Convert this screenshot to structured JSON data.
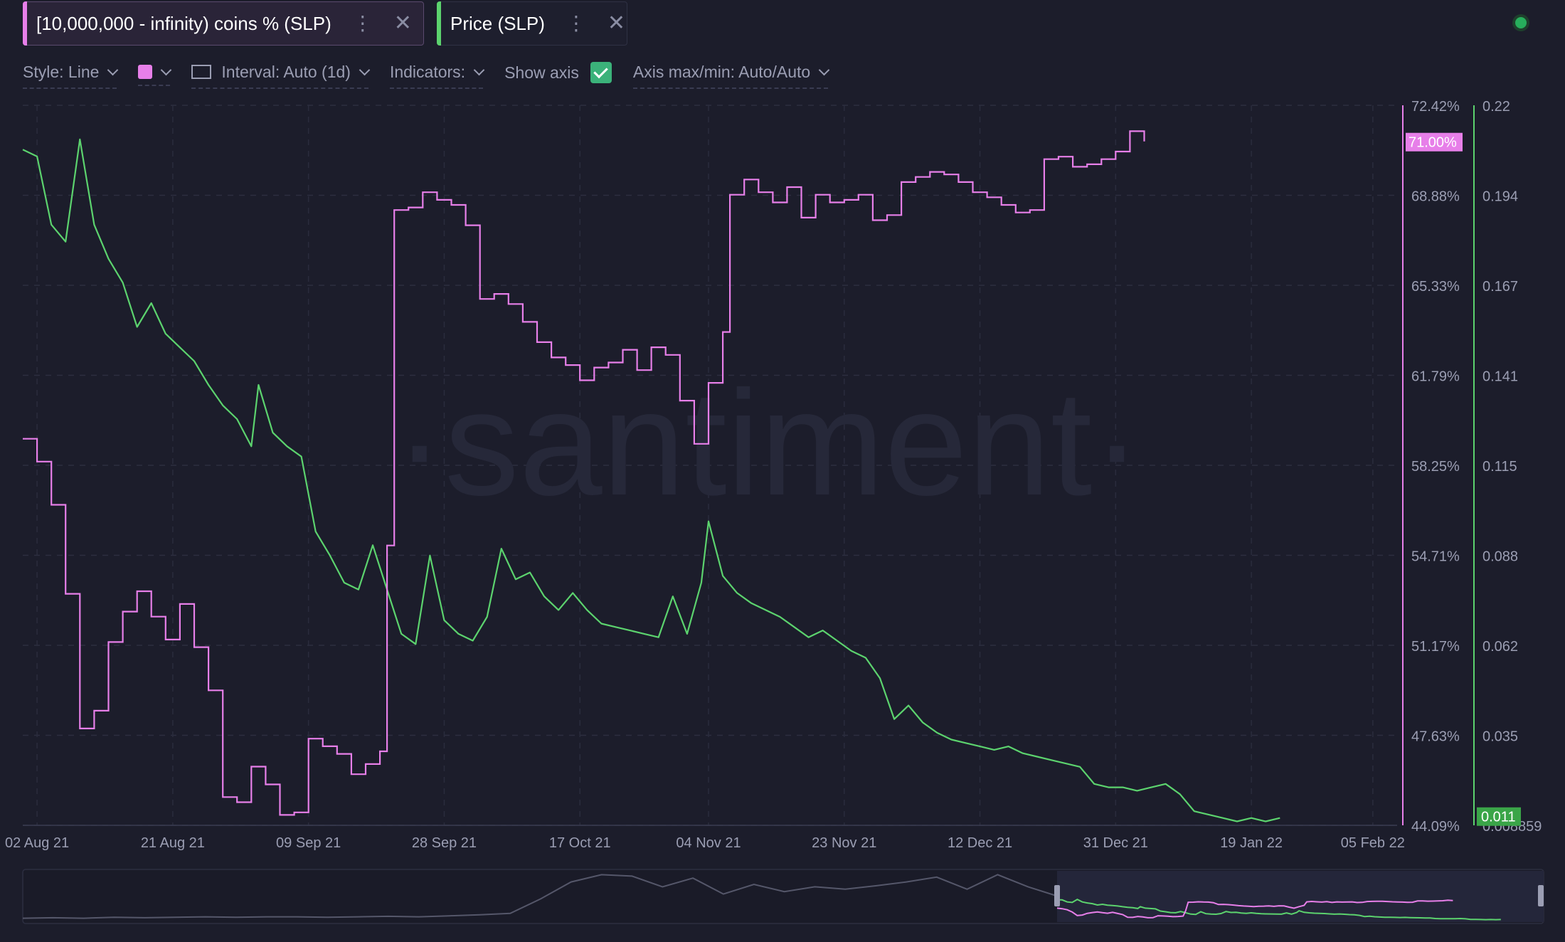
{
  "tabs": [
    {
      "label": "[10,000,000 - infinity) coins % (SLP)",
      "color": "#e77fe9"
    },
    {
      "label": "Price (SLP)",
      "color": "#5cd36e"
    }
  ],
  "toolbar": {
    "style": "Style: Line",
    "interval": "Interval: Auto (1d)",
    "indicators": "Indicators:",
    "show_axis": "Show axis",
    "show_axis_checked": true,
    "axis_maxmin": "Axis max/min: Auto/Auto"
  },
  "watermark": "·santiment·",
  "chart_data": {
    "type": "line",
    "x_ticks": [
      "02 Aug 21",
      "21 Aug 21",
      "09 Sep 21",
      "28 Sep 21",
      "17 Oct 21",
      "04 Nov 21",
      "23 Nov 21",
      "12 Dec 21",
      "31 Dec 21",
      "19 Jan 22",
      "05 Feb 22"
    ],
    "left_axis": {
      "ticks": [
        "72.42%",
        "68.88%",
        "65.33%",
        "61.79%",
        "58.25%",
        "54.71%",
        "51.17%",
        "47.63%",
        "44.09%"
      ],
      "range": [
        44.09,
        72.42
      ]
    },
    "right_axis": {
      "ticks": [
        "0.22",
        "0.194",
        "0.167",
        "0.141",
        "0.115",
        "0.088",
        "0.062",
        "0.035",
        "0.008859"
      ],
      "range": [
        0.008859,
        0.22
      ]
    },
    "last_value_labels": {
      "holders": "71.00%",
      "price": "0.011"
    },
    "series": [
      {
        "name": "[10,000,000 - infinity) coins % (SLP)",
        "color": "#e77fe9",
        "axis": "left",
        "points": [
          [
            "2021-07-31",
            59.3
          ],
          [
            "2021-08-02",
            58.4
          ],
          [
            "2021-08-04",
            56.7
          ],
          [
            "2021-08-06",
            53.2
          ],
          [
            "2021-08-08",
            47.9
          ],
          [
            "2021-08-10",
            48.6
          ],
          [
            "2021-08-12",
            51.3
          ],
          [
            "2021-08-14",
            52.5
          ],
          [
            "2021-08-16",
            53.3
          ],
          [
            "2021-08-18",
            52.3
          ],
          [
            "2021-08-20",
            51.4
          ],
          [
            "2021-08-22",
            52.8
          ],
          [
            "2021-08-24",
            51.1
          ],
          [
            "2021-08-26",
            49.4
          ],
          [
            "2021-08-28",
            45.2
          ],
          [
            "2021-08-30",
            45.0
          ],
          [
            "2021-09-01",
            46.4
          ],
          [
            "2021-09-03",
            45.7
          ],
          [
            "2021-09-05",
            44.5
          ],
          [
            "2021-09-07",
            44.6
          ],
          [
            "2021-09-09",
            47.5
          ],
          [
            "2021-09-11",
            47.2
          ],
          [
            "2021-09-13",
            46.9
          ],
          [
            "2021-09-15",
            46.1
          ],
          [
            "2021-09-17",
            46.5
          ],
          [
            "2021-09-19",
            47.0
          ],
          [
            "2021-09-20",
            55.1
          ],
          [
            "2021-09-21",
            68.3
          ],
          [
            "2021-09-23",
            68.4
          ],
          [
            "2021-09-25",
            69.0
          ],
          [
            "2021-09-27",
            68.7
          ],
          [
            "2021-09-29",
            68.5
          ],
          [
            "2021-10-01",
            67.7
          ],
          [
            "2021-10-03",
            64.8
          ],
          [
            "2021-10-05",
            65.0
          ],
          [
            "2021-10-07",
            64.6
          ],
          [
            "2021-10-09",
            63.9
          ],
          [
            "2021-10-11",
            63.1
          ],
          [
            "2021-10-13",
            62.5
          ],
          [
            "2021-10-15",
            62.2
          ],
          [
            "2021-10-17",
            61.6
          ],
          [
            "2021-10-19",
            62.1
          ],
          [
            "2021-10-21",
            62.3
          ],
          [
            "2021-10-23",
            62.8
          ],
          [
            "2021-10-25",
            62.0
          ],
          [
            "2021-10-27",
            62.9
          ],
          [
            "2021-10-29",
            62.6
          ],
          [
            "2021-10-31",
            60.8
          ],
          [
            "2021-11-02",
            59.1
          ],
          [
            "2021-11-04",
            61.5
          ],
          [
            "2021-11-06",
            63.5
          ],
          [
            "2021-11-07",
            68.9
          ],
          [
            "2021-11-09",
            69.5
          ],
          [
            "2021-11-11",
            69.0
          ],
          [
            "2021-11-13",
            68.6
          ],
          [
            "2021-11-15",
            69.2
          ],
          [
            "2021-11-17",
            68.0
          ],
          [
            "2021-11-19",
            68.9
          ],
          [
            "2021-11-21",
            68.6
          ],
          [
            "2021-11-23",
            68.7
          ],
          [
            "2021-11-25",
            68.9
          ],
          [
            "2021-11-27",
            67.9
          ],
          [
            "2021-11-29",
            68.1
          ],
          [
            "2021-12-01",
            69.4
          ],
          [
            "2021-12-03",
            69.6
          ],
          [
            "2021-12-05",
            69.8
          ],
          [
            "2021-12-07",
            69.7
          ],
          [
            "2021-12-09",
            69.4
          ],
          [
            "2021-12-11",
            69.0
          ],
          [
            "2021-12-13",
            68.8
          ],
          [
            "2021-12-15",
            68.5
          ],
          [
            "2021-12-17",
            68.2
          ],
          [
            "2021-12-19",
            68.3
          ],
          [
            "2021-12-21",
            70.3
          ],
          [
            "2021-12-23",
            70.4
          ],
          [
            "2021-12-25",
            70.0
          ],
          [
            "2021-12-27",
            70.1
          ],
          [
            "2021-12-29",
            70.3
          ],
          [
            "2021-12-31",
            70.6
          ],
          [
            "2022-01-02",
            71.4
          ],
          [
            "2022-01-04",
            71.0
          ]
        ]
      },
      {
        "name": "Price (SLP)",
        "color": "#5cd36e",
        "axis": "right",
        "points": [
          [
            "2021-07-31",
            0.207
          ],
          [
            "2021-08-02",
            0.205
          ],
          [
            "2021-08-04",
            0.185
          ],
          [
            "2021-08-06",
            0.18
          ],
          [
            "2021-08-08",
            0.21
          ],
          [
            "2021-08-10",
            0.185
          ],
          [
            "2021-08-12",
            0.175
          ],
          [
            "2021-08-14",
            0.168
          ],
          [
            "2021-08-16",
            0.155
          ],
          [
            "2021-08-18",
            0.162
          ],
          [
            "2021-08-20",
            0.153
          ],
          [
            "2021-08-22",
            0.149
          ],
          [
            "2021-08-24",
            0.145
          ],
          [
            "2021-08-26",
            0.138
          ],
          [
            "2021-08-28",
            0.132
          ],
          [
            "2021-08-30",
            0.128
          ],
          [
            "2021-09-01",
            0.12
          ],
          [
            "2021-09-02",
            0.138
          ],
          [
            "2021-09-04",
            0.124
          ],
          [
            "2021-09-06",
            0.12
          ],
          [
            "2021-09-08",
            0.117
          ],
          [
            "2021-09-10",
            0.095
          ],
          [
            "2021-09-12",
            0.088
          ],
          [
            "2021-09-14",
            0.08
          ],
          [
            "2021-09-16",
            0.078
          ],
          [
            "2021-09-18",
            0.091
          ],
          [
            "2021-09-20",
            0.078
          ],
          [
            "2021-09-22",
            0.065
          ],
          [
            "2021-09-24",
            0.062
          ],
          [
            "2021-09-26",
            0.088
          ],
          [
            "2021-09-28",
            0.069
          ],
          [
            "2021-09-30",
            0.065
          ],
          [
            "2021-10-02",
            0.063
          ],
          [
            "2021-10-04",
            0.07
          ],
          [
            "2021-10-06",
            0.09
          ],
          [
            "2021-10-08",
            0.081
          ],
          [
            "2021-10-10",
            0.083
          ],
          [
            "2021-10-12",
            0.076
          ],
          [
            "2021-10-14",
            0.072
          ],
          [
            "2021-10-16",
            0.077
          ],
          [
            "2021-10-18",
            0.072
          ],
          [
            "2021-10-20",
            0.068
          ],
          [
            "2021-10-22",
            0.067
          ],
          [
            "2021-10-24",
            0.066
          ],
          [
            "2021-10-26",
            0.065
          ],
          [
            "2021-10-28",
            0.064
          ],
          [
            "2021-10-30",
            0.076
          ],
          [
            "2021-11-01",
            0.065
          ],
          [
            "2021-11-03",
            0.08
          ],
          [
            "2021-11-04",
            0.098
          ],
          [
            "2021-11-06",
            0.082
          ],
          [
            "2021-11-08",
            0.077
          ],
          [
            "2021-11-10",
            0.074
          ],
          [
            "2021-11-12",
            0.072
          ],
          [
            "2021-11-14",
            0.07
          ],
          [
            "2021-11-16",
            0.067
          ],
          [
            "2021-11-18",
            0.064
          ],
          [
            "2021-11-20",
            0.066
          ],
          [
            "2021-11-22",
            0.063
          ],
          [
            "2021-11-24",
            0.06
          ],
          [
            "2021-11-26",
            0.058
          ],
          [
            "2021-11-28",
            0.052
          ],
          [
            "2021-11-30",
            0.04
          ],
          [
            "2021-12-02",
            0.044
          ],
          [
            "2021-12-04",
            0.039
          ],
          [
            "2021-12-06",
            0.036
          ],
          [
            "2021-12-08",
            0.034
          ],
          [
            "2021-12-10",
            0.033
          ],
          [
            "2021-12-12",
            0.032
          ],
          [
            "2021-12-14",
            0.031
          ],
          [
            "2021-12-16",
            0.032
          ],
          [
            "2021-12-18",
            0.03
          ],
          [
            "2021-12-20",
            0.029
          ],
          [
            "2021-12-22",
            0.028
          ],
          [
            "2021-12-24",
            0.027
          ],
          [
            "2021-12-26",
            0.026
          ],
          [
            "2021-12-28",
            0.021
          ],
          [
            "2021-12-30",
            0.02
          ],
          [
            "2022-01-01",
            0.02
          ],
          [
            "2022-01-03",
            0.019
          ],
          [
            "2022-01-05",
            0.02
          ],
          [
            "2022-01-07",
            0.021
          ],
          [
            "2022-01-09",
            0.018
          ],
          [
            "2022-01-11",
            0.013
          ],
          [
            "2022-01-13",
            0.012
          ],
          [
            "2022-01-15",
            0.011
          ],
          [
            "2022-01-17",
            0.01
          ],
          [
            "2022-01-19",
            0.011
          ],
          [
            "2022-01-21",
            0.01
          ],
          [
            "2022-01-23",
            0.011
          ]
        ]
      }
    ]
  },
  "navigator": {
    "holders_color": "#e77fe9",
    "price_color": "#5cd36e",
    "history_color": "#55576a"
  }
}
